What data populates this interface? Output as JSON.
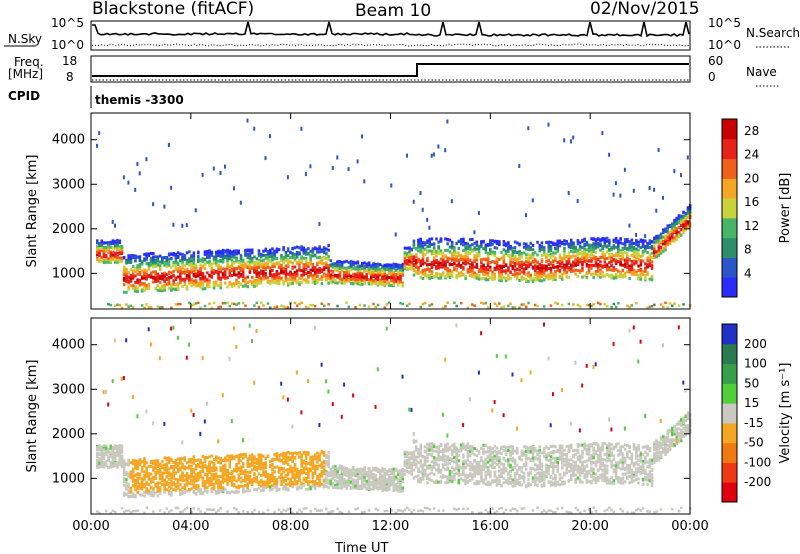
{
  "header": {
    "station": "Blackstone (fitACF)",
    "beam": "Beam 10",
    "date": "02/Nov/2015"
  },
  "noise_panel": {
    "left_label": "N.Sky",
    "left_ticks": [
      "10^5",
      "10^0"
    ],
    "right_label": "N.Search",
    "right_ticks": [
      "10^5",
      "10^0"
    ]
  },
  "freq_panel": {
    "left_label_1": "Freq.",
    "left_label_2": "[MHz]",
    "left_ticks": [
      "18",
      "8"
    ],
    "right_label": "Nave",
    "right_ticks": [
      "60",
      "0"
    ]
  },
  "cpid": {
    "label": "CPID",
    "value": "themis -3300"
  },
  "chart_data": [
    {
      "type": "heatmap",
      "title": "",
      "xlabel": "Time UT",
      "ylabel": "Slant Range [km]",
      "xlim": [
        "00:00",
        "24:00"
      ],
      "ylim": [
        200,
        4600
      ],
      "x_ticks": [
        "00:00",
        "04:00",
        "08:00",
        "12:00",
        "16:00",
        "20:00",
        "00:00"
      ],
      "y_ticks": [
        1000,
        2000,
        3000,
        4000
      ],
      "colorbar": {
        "label": "Power [dB]",
        "ticks": [
          4,
          8,
          12,
          16,
          20,
          24,
          28
        ],
        "range": [
          0,
          30
        ],
        "colors": [
          "#2a2cff",
          "#2b55c8",
          "#2a8f6a",
          "#48b566",
          "#c8d23a",
          "#f5a623",
          "#f06018",
          "#e8221a",
          "#c80000"
        ]
      }
    },
    {
      "type": "heatmap",
      "title": "",
      "xlabel": "Time UT",
      "ylabel": "Slant Range [km]",
      "xlim": [
        "00:00",
        "24:00"
      ],
      "ylim": [
        200,
        4600
      ],
      "x_ticks": [
        "00:00",
        "04:00",
        "08:00",
        "12:00",
        "16:00",
        "20:00",
        "00:00"
      ],
      "y_ticks": [
        1000,
        2000,
        3000,
        4000
      ],
      "colorbar": {
        "label": "Velocity [m s⁻¹]",
        "ticks": [
          200,
          100,
          50,
          15,
          -15,
          -50,
          -100,
          -200
        ],
        "colors": [
          "#1f30c8",
          "#2a7a50",
          "#35a04a",
          "#4fcf3a",
          "#c9c9c0",
          "#f5a623",
          "#f07a10",
          "#ee3a12",
          "#e00010"
        ]
      }
    }
  ]
}
